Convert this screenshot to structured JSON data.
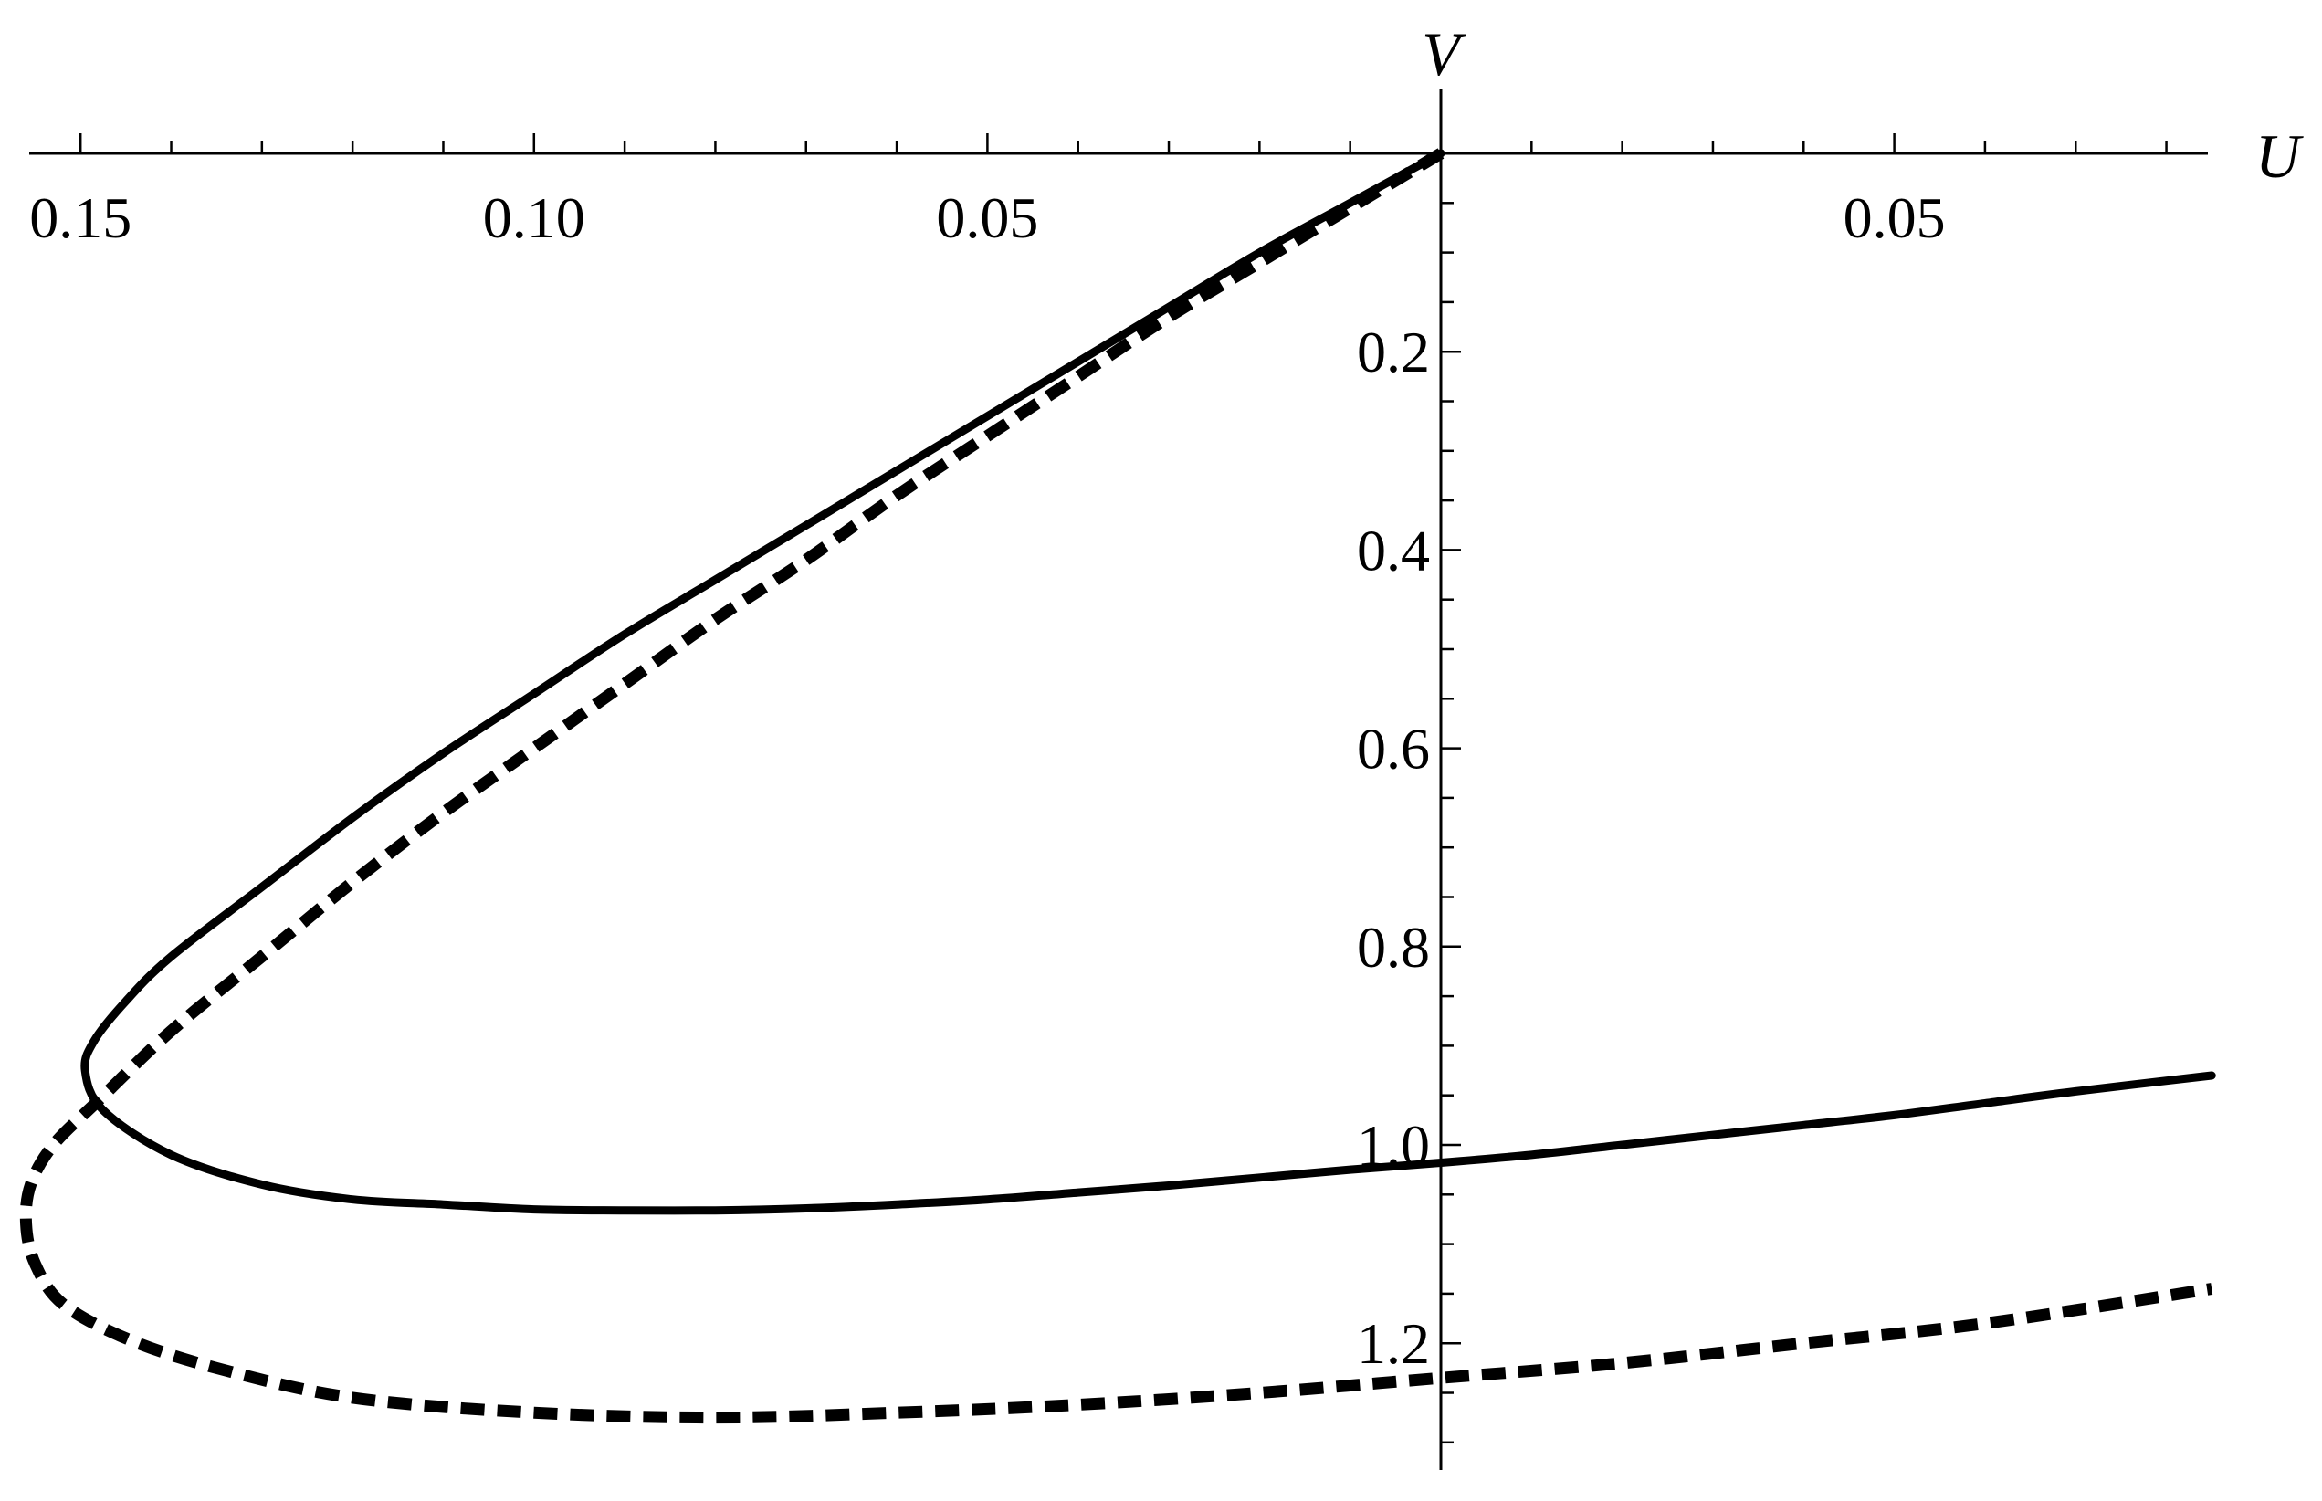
{
  "chart_data": {
    "type": "line",
    "title": "",
    "xlabel": "U",
    "ylabel": "V",
    "xlim": [
      -0.158,
      0.085
    ],
    "ylim": [
      1.32,
      0.0
    ],
    "y_axis_inverted": true,
    "grid": false,
    "legend": "none",
    "x_tick_labels": [
      {
        "value": -0.15,
        "label": "0.15"
      },
      {
        "value": -0.1,
        "label": "0.10"
      },
      {
        "value": -0.05,
        "label": "0.05"
      },
      {
        "value": 0.05,
        "label": "0.05"
      }
    ],
    "y_tick_labels": [
      {
        "value": 0.2,
        "label": "0.2"
      },
      {
        "value": 0.4,
        "label": "0.4"
      },
      {
        "value": 0.6,
        "label": "0.6"
      },
      {
        "value": 0.8,
        "label": "0.8"
      },
      {
        "value": 1.0,
        "label": "1.0"
      },
      {
        "value": 1.2,
        "label": "1.2"
      }
    ],
    "series": [
      {
        "style": "solid",
        "color": "#000000",
        "x": [
          0.0,
          -0.01,
          -0.02,
          -0.03,
          -0.04,
          -0.05,
          -0.06,
          -0.07,
          -0.08,
          -0.09,
          -0.1,
          -0.11,
          -0.12,
          -0.13,
          -0.14,
          -0.145,
          -0.1485,
          -0.1495,
          -0.1475,
          -0.14,
          -0.13,
          -0.12,
          -0.11,
          -0.1,
          -0.09,
          -0.08,
          -0.07,
          -0.06,
          -0.05,
          -0.04,
          -0.03,
          -0.02,
          -0.01,
          0.0,
          0.01,
          0.02,
          0.03,
          0.04,
          0.05,
          0.06,
          0.07,
          0.085
        ],
        "y": [
          0.0,
          0.05,
          0.1,
          0.155,
          0.21,
          0.265,
          0.32,
          0.375,
          0.43,
          0.485,
          0.545,
          0.605,
          0.67,
          0.74,
          0.81,
          0.855,
          0.895,
          0.925,
          0.965,
          1.01,
          1.04,
          1.055,
          1.06,
          1.065,
          1.066,
          1.066,
          1.064,
          1.06,
          1.055,
          1.048,
          1.041,
          1.033,
          1.025,
          1.018,
          1.01,
          1.0,
          0.99,
          0.98,
          0.97,
          0.958,
          0.946,
          0.93
        ]
      },
      {
        "style": "dashed",
        "color": "#000000",
        "x": [
          0.0,
          -0.01,
          -0.02,
          -0.03,
          -0.04,
          -0.05,
          -0.06,
          -0.07,
          -0.08,
          -0.09,
          -0.1,
          -0.11,
          -0.12,
          -0.13,
          -0.14,
          -0.148,
          -0.153,
          -0.1555,
          -0.156,
          -0.155,
          -0.152,
          -0.145,
          -0.135,
          -0.12,
          -0.1,
          -0.08,
          -0.06,
          -0.04,
          -0.02,
          0.0,
          0.02,
          0.04,
          0.06,
          0.085
        ],
        "y": [
          0.0,
          0.055,
          0.11,
          0.165,
          0.225,
          0.285,
          0.345,
          0.41,
          0.47,
          0.535,
          0.6,
          0.665,
          0.735,
          0.81,
          0.885,
          0.955,
          1.0,
          1.04,
          1.08,
          1.12,
          1.16,
          1.195,
          1.225,
          1.255,
          1.27,
          1.275,
          1.27,
          1.262,
          1.25,
          1.235,
          1.22,
          1.2,
          1.18,
          1.145
        ]
      }
    ]
  }
}
